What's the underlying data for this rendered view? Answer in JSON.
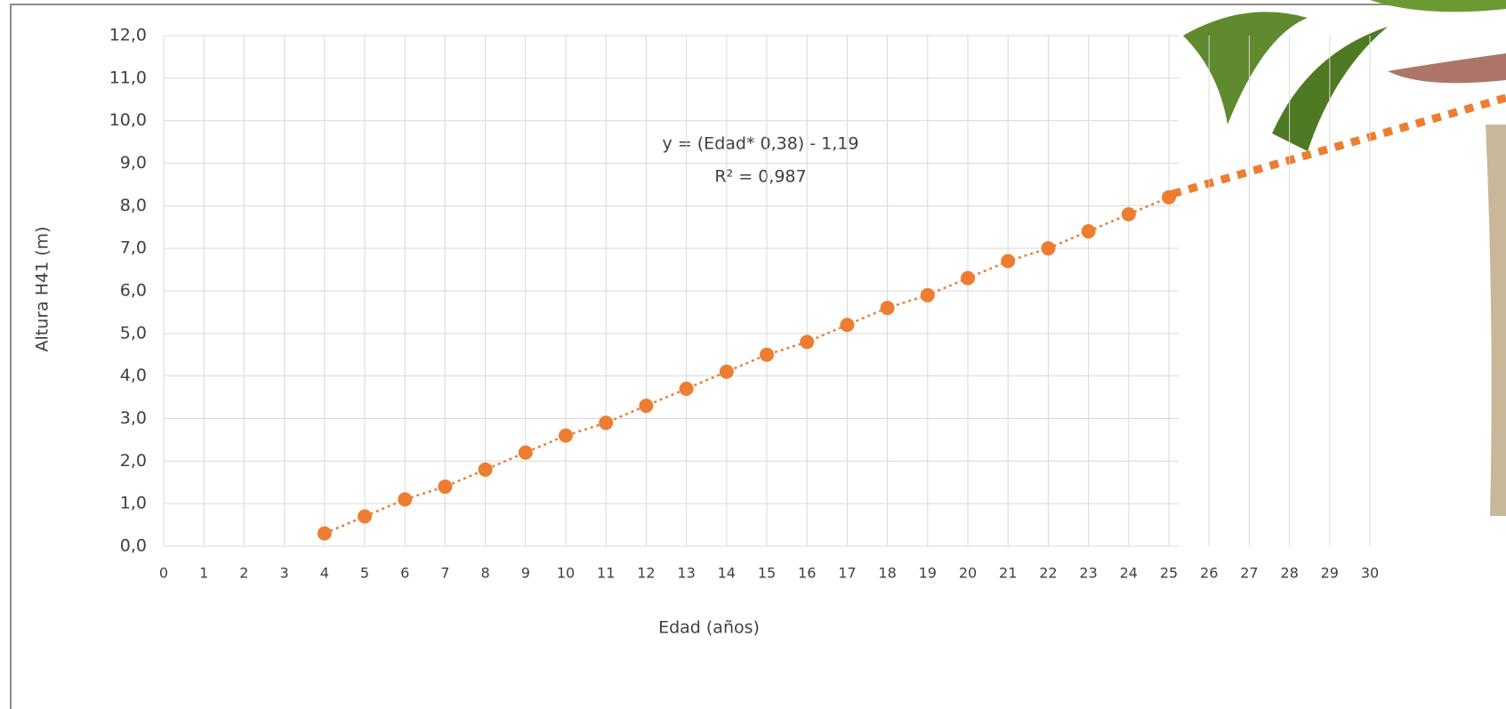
{
  "chart_data": {
    "type": "scatter",
    "x_label": "Edad (años)",
    "y_label": "Altura H41 (m)",
    "annotations": [
      "y = (Edad* 0,38) - 1,19",
      "R² = 0,987"
    ],
    "x": [
      4,
      5,
      6,
      7,
      8,
      9,
      10,
      11,
      12,
      13,
      14,
      15,
      16,
      17,
      18,
      19,
      20,
      21,
      22,
      23,
      24,
      25
    ],
    "series": [
      {
        "color": "#ed7d31",
        "values": [
          0.3,
          0.7,
          1.1,
          1.4,
          1.8,
          2.2,
          2.6,
          2.9,
          3.3,
          3.7,
          4.1,
          4.5,
          4.8,
          5.2,
          5.6,
          5.9,
          6.3,
          6.7,
          7.0,
          7.4,
          7.8,
          8.2
        ]
      }
    ],
    "xlim": [
      0,
      30
    ],
    "xticks": [
      0,
      1,
      2,
      3,
      4,
      5,
      6,
      7,
      8,
      9,
      10,
      11,
      12,
      13,
      14,
      15,
      16,
      17,
      18,
      19,
      20,
      21,
      22,
      23,
      24,
      25,
      26,
      27,
      28,
      29,
      30
    ],
    "ylim": [
      0,
      12
    ],
    "yticks": [
      {
        "value": 0,
        "label": "0,0"
      },
      {
        "value": 1,
        "label": "1,0"
      },
      {
        "value": 2,
        "label": "2,0"
      },
      {
        "value": 3,
        "label": "3,0"
      },
      {
        "value": 4,
        "label": "4,0"
      },
      {
        "value": 5,
        "label": "5,0"
      },
      {
        "value": 6,
        "label": "6,0"
      },
      {
        "value": 7,
        "label": "7,0"
      },
      {
        "value": 8,
        "label": "8,0"
      },
      {
        "value": 9,
        "label": "9,0"
      },
      {
        "value": 10,
        "label": "10,0"
      },
      {
        "value": 11,
        "label": "11,0"
      },
      {
        "value": 12,
        "label": "12,0"
      }
    ],
    "grid": true
  }
}
